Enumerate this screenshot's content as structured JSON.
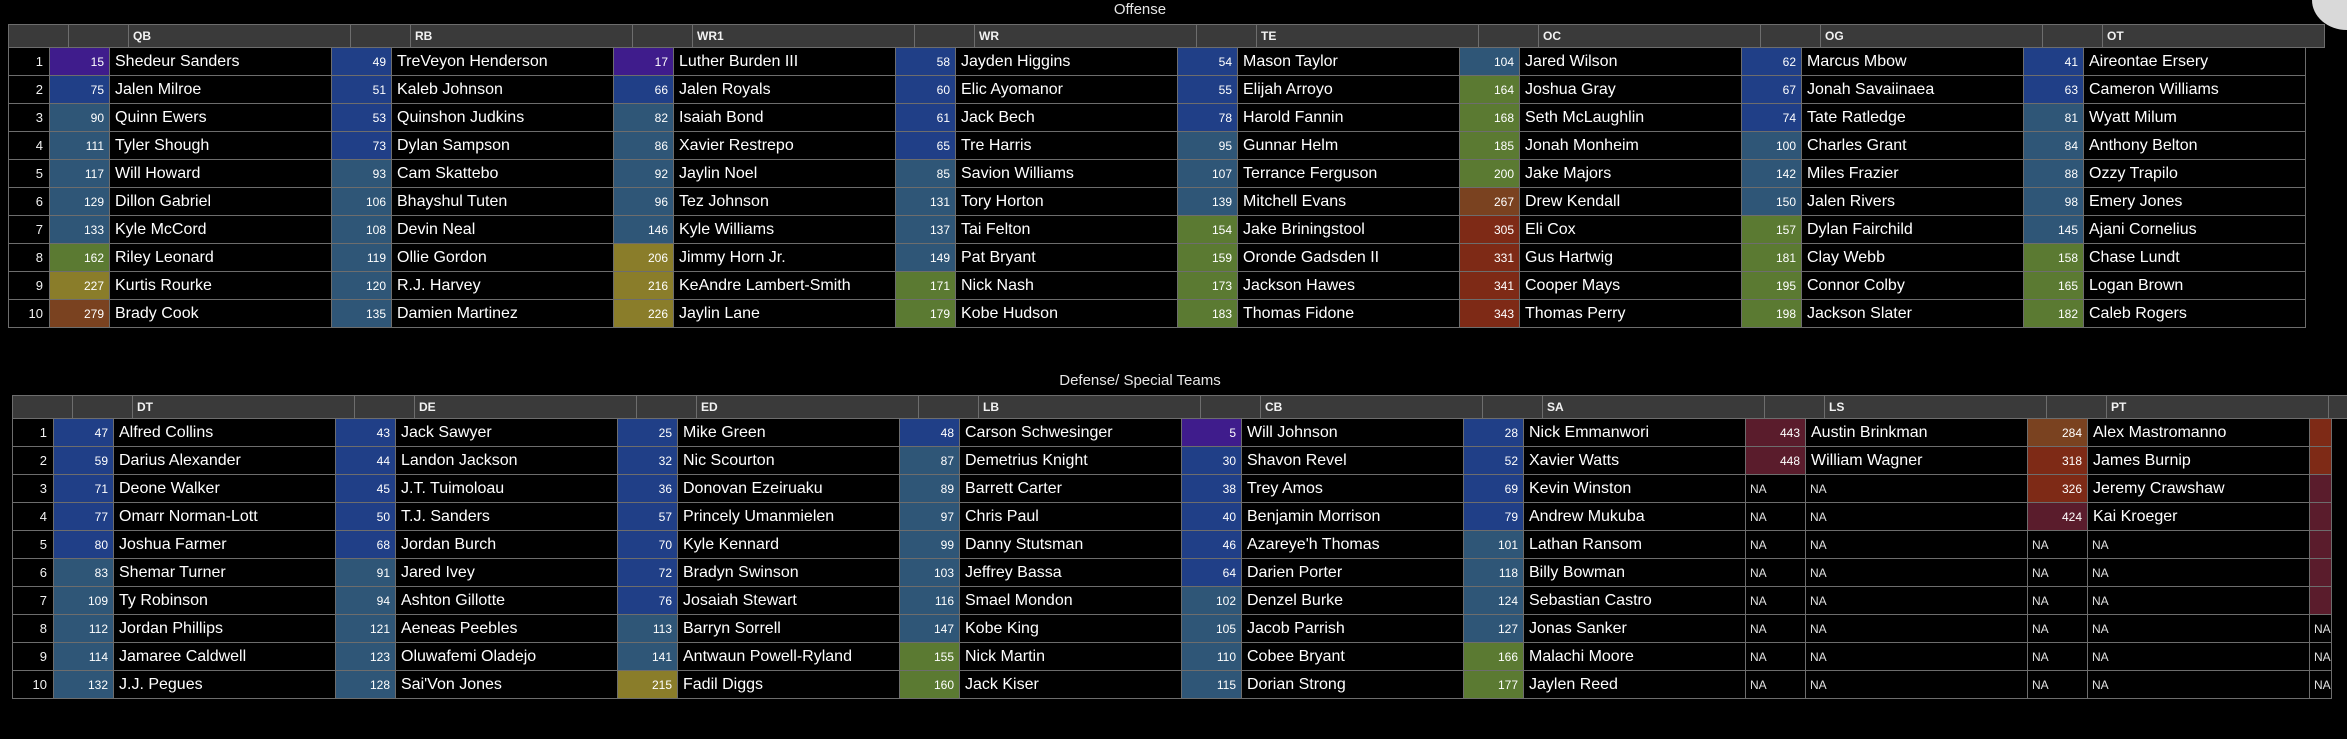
{
  "colors": {
    "purple": "#3f1c8c",
    "blue": "#203f87",
    "steel": "#2f5677",
    "green": "#5b7a32",
    "olive": "#8a7d2a",
    "brown": "#7a4220",
    "red": "#7e2a16",
    "maroon": "#5a1c2c"
  },
  "offense": {
    "title": "Offense",
    "positions": [
      "QB",
      "RB",
      "WR1",
      "WR",
      "TE",
      "OC",
      "OG",
      "OT"
    ],
    "rows": [
      {
        "n": "1",
        "cells": [
          [
            "15",
            "Shedeur Sanders",
            "purple"
          ],
          [
            "49",
            "TreVeyon Henderson",
            "blue"
          ],
          [
            "17",
            "Luther Burden III",
            "purple"
          ],
          [
            "58",
            "Jayden Higgins",
            "blue"
          ],
          [
            "54",
            "Mason Taylor",
            "blue"
          ],
          [
            "104",
            "Jared Wilson",
            "steel"
          ],
          [
            "62",
            "Marcus Mbow",
            "blue"
          ],
          [
            "41",
            "Aireontae Ersery",
            "blue"
          ]
        ]
      },
      {
        "n": "2",
        "cells": [
          [
            "75",
            "Jalen Milroe",
            "blue"
          ],
          [
            "51",
            "Kaleb Johnson",
            "blue"
          ],
          [
            "66",
            "Jalen Royals",
            "blue"
          ],
          [
            "60",
            "Elic Ayomanor",
            "blue"
          ],
          [
            "55",
            "Elijah Arroyo",
            "blue"
          ],
          [
            "164",
            "Joshua Gray",
            "green"
          ],
          [
            "67",
            "Jonah Savaiinaea",
            "blue"
          ],
          [
            "63",
            "Cameron Williams",
            "blue"
          ]
        ]
      },
      {
        "n": "3",
        "cells": [
          [
            "90",
            "Quinn Ewers",
            "steel"
          ],
          [
            "53",
            "Quinshon Judkins",
            "blue"
          ],
          [
            "82",
            "Isaiah Bond",
            "steel"
          ],
          [
            "61",
            "Jack Bech",
            "blue"
          ],
          [
            "78",
            "Harold Fannin",
            "blue"
          ],
          [
            "168",
            "Seth McLaughlin",
            "green"
          ],
          [
            "74",
            "Tate Ratledge",
            "blue"
          ],
          [
            "81",
            "Wyatt Milum",
            "steel"
          ]
        ]
      },
      {
        "n": "4",
        "cells": [
          [
            "111",
            "Tyler Shough",
            "steel"
          ],
          [
            "73",
            "Dylan Sampson",
            "blue"
          ],
          [
            "86",
            "Xavier Restrepo",
            "steel"
          ],
          [
            "65",
            "Tre Harris",
            "blue"
          ],
          [
            "95",
            "Gunnar Helm",
            "steel"
          ],
          [
            "185",
            "Jonah Monheim",
            "green"
          ],
          [
            "100",
            "Charles Grant",
            "steel"
          ],
          [
            "84",
            "Anthony Belton",
            "steel"
          ]
        ]
      },
      {
        "n": "5",
        "cells": [
          [
            "117",
            "Will Howard",
            "steel"
          ],
          [
            "93",
            "Cam Skattebo",
            "steel"
          ],
          [
            "92",
            "Jaylin Noel",
            "steel"
          ],
          [
            "85",
            "Savion Williams",
            "steel"
          ],
          [
            "107",
            "Terrance Ferguson",
            "steel"
          ],
          [
            "200",
            "Jake Majors",
            "green"
          ],
          [
            "142",
            "Miles Frazier",
            "steel"
          ],
          [
            "88",
            "Ozzy Trapilo",
            "steel"
          ]
        ]
      },
      {
        "n": "6",
        "cells": [
          [
            "129",
            "Dillon Gabriel",
            "steel"
          ],
          [
            "106",
            "Bhayshul Tuten",
            "steel"
          ],
          [
            "96",
            "Tez Johnson",
            "steel"
          ],
          [
            "131",
            "Tory Horton",
            "steel"
          ],
          [
            "139",
            "Mitchell Evans",
            "steel"
          ],
          [
            "267",
            "Drew Kendall",
            "brown"
          ],
          [
            "150",
            "Jalen Rivers",
            "steel"
          ],
          [
            "98",
            "Emery Jones",
            "steel"
          ]
        ]
      },
      {
        "n": "7",
        "cells": [
          [
            "133",
            "Kyle McCord",
            "steel"
          ],
          [
            "108",
            "Devin Neal",
            "steel"
          ],
          [
            "146",
            "Kyle Williams",
            "steel"
          ],
          [
            "137",
            "Tai Felton",
            "steel"
          ],
          [
            "154",
            "Jake Briningstool",
            "green"
          ],
          [
            "305",
            "Eli Cox",
            "red"
          ],
          [
            "157",
            "Dylan Fairchild",
            "green"
          ],
          [
            "145",
            "Ajani Cornelius",
            "steel"
          ]
        ]
      },
      {
        "n": "8",
        "cells": [
          [
            "162",
            "Riley Leonard",
            "green"
          ],
          [
            "119",
            "Ollie Gordon",
            "steel"
          ],
          [
            "206",
            "Jimmy Horn Jr.",
            "olive"
          ],
          [
            "149",
            "Pat Bryant",
            "steel"
          ],
          [
            "159",
            "Oronde Gadsden II",
            "green"
          ],
          [
            "331",
            "Gus Hartwig",
            "red"
          ],
          [
            "181",
            "Clay Webb",
            "green"
          ],
          [
            "158",
            "Chase Lundt",
            "green"
          ]
        ]
      },
      {
        "n": "9",
        "cells": [
          [
            "227",
            "Kurtis Rourke",
            "olive"
          ],
          [
            "120",
            "R.J. Harvey",
            "steel"
          ],
          [
            "216",
            "KeAndre Lambert-Smith",
            "olive"
          ],
          [
            "171",
            "Nick Nash",
            "green"
          ],
          [
            "173",
            "Jackson Hawes",
            "green"
          ],
          [
            "341",
            "Cooper Mays",
            "red"
          ],
          [
            "195",
            "Connor Colby",
            "green"
          ],
          [
            "165",
            "Logan Brown",
            "green"
          ]
        ]
      },
      {
        "n": "10",
        "cells": [
          [
            "279",
            "Brady Cook",
            "brown"
          ],
          [
            "135",
            "Damien Martinez",
            "steel"
          ],
          [
            "226",
            "Jaylin Lane",
            "olive"
          ],
          [
            "179",
            "Kobe Hudson",
            "green"
          ],
          [
            "183",
            "Thomas Fidone",
            "green"
          ],
          [
            "343",
            "Thomas Perry",
            "red"
          ],
          [
            "198",
            "Jackson Slater",
            "green"
          ],
          [
            "182",
            "Caleb Rogers",
            "green"
          ]
        ]
      }
    ]
  },
  "defense": {
    "title": "Defense/ Special Teams",
    "positions": [
      "DT",
      "DE",
      "ED",
      "LB",
      "CB",
      "SA",
      "LS",
      "PT"
    ],
    "rows": [
      {
        "n": "1",
        "cells": [
          [
            "47",
            "Alfred Collins",
            "blue"
          ],
          [
            "43",
            "Jack Sawyer",
            "blue"
          ],
          [
            "25",
            "Mike Green",
            "blue"
          ],
          [
            "48",
            "Carson Schwesinger",
            "blue"
          ],
          [
            "5",
            "Will Johnson",
            "purple"
          ],
          [
            "28",
            "Nick Emmanwori",
            "blue"
          ],
          [
            "443",
            "Austin Brinkman",
            "maroon"
          ],
          [
            "284",
            "Alex Mastromanno",
            "brown"
          ]
        ],
        "tail": "red"
      },
      {
        "n": "2",
        "cells": [
          [
            "59",
            "Darius Alexander",
            "blue"
          ],
          [
            "44",
            "Landon Jackson",
            "blue"
          ],
          [
            "32",
            "Nic Scourton",
            "blue"
          ],
          [
            "87",
            "Demetrius Knight",
            "steel"
          ],
          [
            "30",
            "Shavon Revel",
            "blue"
          ],
          [
            "52",
            "Xavier Watts",
            "blue"
          ],
          [
            "448",
            "William Wagner",
            "maroon"
          ],
          [
            "318",
            "James Burnip",
            "red"
          ]
        ],
        "tail": "red"
      },
      {
        "n": "3",
        "cells": [
          [
            "71",
            "Deone Walker",
            "blue"
          ],
          [
            "45",
            "J.T. Tuimoloau",
            "blue"
          ],
          [
            "36",
            "Donovan Ezeiruaku",
            "blue"
          ],
          [
            "89",
            "Barrett Carter",
            "steel"
          ],
          [
            "38",
            "Trey Amos",
            "blue"
          ],
          [
            "69",
            "Kevin Winston",
            "blue"
          ],
          [
            "NA",
            "NA",
            "na"
          ],
          [
            "326",
            "Jeremy Crawshaw",
            "red"
          ]
        ],
        "tail": "maroon"
      },
      {
        "n": "4",
        "cells": [
          [
            "77",
            "Omarr Norman-Lott",
            "blue"
          ],
          [
            "50",
            "T.J. Sanders",
            "blue"
          ],
          [
            "57",
            "Princely Umanmielen",
            "blue"
          ],
          [
            "97",
            "Chris Paul",
            "steel"
          ],
          [
            "40",
            "Benjamin Morrison",
            "blue"
          ],
          [
            "79",
            "Andrew Mukuba",
            "blue"
          ],
          [
            "NA",
            "NA",
            "na"
          ],
          [
            "424",
            "Kai Kroeger",
            "maroon"
          ]
        ],
        "tail": "maroon"
      },
      {
        "n": "5",
        "cells": [
          [
            "80",
            "Joshua Farmer",
            "blue"
          ],
          [
            "68",
            "Jordan Burch",
            "blue"
          ],
          [
            "70",
            "Kyle Kennard",
            "blue"
          ],
          [
            "99",
            "Danny Stutsman",
            "steel"
          ],
          [
            "46",
            "Azareye'h Thomas",
            "blue"
          ],
          [
            "101",
            "Lathan Ransom",
            "steel"
          ],
          [
            "NA",
            "NA",
            "na"
          ],
          [
            "NA",
            "NA",
            "na"
          ]
        ],
        "tail": "maroon"
      },
      {
        "n": "6",
        "cells": [
          [
            "83",
            "Shemar Turner",
            "steel"
          ],
          [
            "91",
            "Jared Ivey",
            "steel"
          ],
          [
            "72",
            "Bradyn Swinson",
            "blue"
          ],
          [
            "103",
            "Jeffrey Bassa",
            "steel"
          ],
          [
            "64",
            "Darien Porter",
            "blue"
          ],
          [
            "118",
            "Billy Bowman",
            "steel"
          ],
          [
            "NA",
            "NA",
            "na"
          ],
          [
            "NA",
            "NA",
            "na"
          ]
        ],
        "tail": "maroon"
      },
      {
        "n": "7",
        "cells": [
          [
            "109",
            "Ty Robinson",
            "steel"
          ],
          [
            "94",
            "Ashton Gillotte",
            "steel"
          ],
          [
            "76",
            "Josaiah Stewart",
            "blue"
          ],
          [
            "116",
            "Smael Mondon",
            "steel"
          ],
          [
            "102",
            "Denzel Burke",
            "steel"
          ],
          [
            "124",
            "Sebastian Castro",
            "steel"
          ],
          [
            "NA",
            "NA",
            "na"
          ],
          [
            "NA",
            "NA",
            "na"
          ]
        ],
        "tail": "maroon"
      },
      {
        "n": "8",
        "cells": [
          [
            "112",
            "Jordan Phillips",
            "steel"
          ],
          [
            "121",
            "Aeneas Peebles",
            "steel"
          ],
          [
            "113",
            "Barryn Sorrell",
            "steel"
          ],
          [
            "147",
            "Kobe King",
            "steel"
          ],
          [
            "105",
            "Jacob Parrish",
            "steel"
          ],
          [
            "127",
            "Jonas Sanker",
            "steel"
          ],
          [
            "NA",
            "NA",
            "na"
          ],
          [
            "NA",
            "NA",
            "na"
          ]
        ],
        "tail": "na"
      },
      {
        "n": "9",
        "cells": [
          [
            "114",
            "Jamaree Caldwell",
            "steel"
          ],
          [
            "123",
            "Oluwafemi Oladejo",
            "steel"
          ],
          [
            "141",
            "Antwaun Powell-Ryland",
            "steel"
          ],
          [
            "155",
            "Nick Martin",
            "green"
          ],
          [
            "110",
            "Cobee Bryant",
            "steel"
          ],
          [
            "166",
            "Malachi Moore",
            "green"
          ],
          [
            "NA",
            "NA",
            "na"
          ],
          [
            "NA",
            "NA",
            "na"
          ]
        ],
        "tail": "na"
      },
      {
        "n": "10",
        "cells": [
          [
            "132",
            "J.J. Pegues",
            "steel"
          ],
          [
            "128",
            "Sai'Von Jones",
            "steel"
          ],
          [
            "215",
            "Fadil Diggs",
            "olive"
          ],
          [
            "160",
            "Jack Kiser",
            "green"
          ],
          [
            "115",
            "Dorian Strong",
            "steel"
          ],
          [
            "177",
            "Jaylen Reed",
            "green"
          ],
          [
            "NA",
            "NA",
            "na"
          ],
          [
            "NA",
            "NA",
            "na"
          ]
        ],
        "tail": "na"
      }
    ]
  }
}
